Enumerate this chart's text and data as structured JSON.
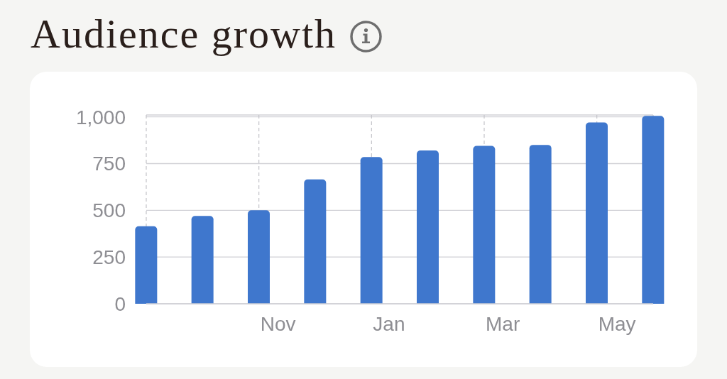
{
  "chart_data": {
    "type": "bar",
    "title": "Audience growth",
    "categories": [
      null,
      null,
      "Nov",
      null,
      "Jan",
      null,
      "Mar",
      null,
      "May",
      null
    ],
    "values": [
      415,
      470,
      500,
      665,
      785,
      820,
      845,
      850,
      970,
      1005
    ],
    "color": "#3f77cd",
    "ylim": [
      0,
      1010
    ],
    "yticks": [
      0,
      250,
      500,
      750,
      {
        "value": 1000,
        "label": "1,000"
      }
    ],
    "grid": true
  }
}
